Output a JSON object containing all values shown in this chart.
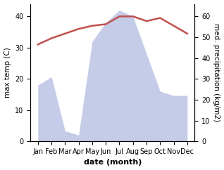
{
  "months": [
    "Jan",
    "Feb",
    "Mar",
    "Apr",
    "May",
    "Jun",
    "Jul",
    "Aug",
    "Sep",
    "Oct",
    "Nov",
    "Dec"
  ],
  "temperature": [
    31,
    33,
    34.5,
    36,
    37,
    37.5,
    40,
    40,
    38.5,
    39.5,
    37,
    34.5
  ],
  "precipitation": [
    27,
    31,
    5,
    3,
    48,
    57,
    63,
    60,
    42,
    24,
    22,
    22
  ],
  "temp_color": "#c0504d",
  "precip_color": "#c5cce8",
  "ylabel_left": "max temp (C)",
  "ylabel_right": "med. precipitation (kg/m2)",
  "xlabel": "date (month)",
  "ylim_left": [
    0,
    44
  ],
  "ylim_right": [
    0,
    66
  ],
  "yticks_left": [
    0,
    10,
    20,
    30,
    40
  ],
  "yticks_right": [
    0,
    10,
    20,
    30,
    40,
    50,
    60
  ],
  "background_color": "#ffffff",
  "temp_linewidth": 1.8,
  "xlabel_fontsize": 8,
  "ylabel_fontsize": 7.5,
  "tick_fontsize": 7
}
